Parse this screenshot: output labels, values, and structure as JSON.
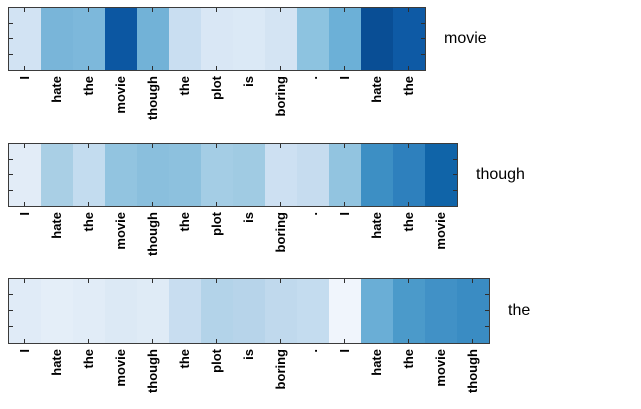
{
  "figure": {
    "background": "#ffffff",
    "axis_color": "#3b3b3b",
    "tick_color": "#2f2f2f",
    "label_color": "#000000"
  },
  "chart_data": {
    "type": "heatmap",
    "title": "",
    "colormap": "Blues",
    "legend": "none",
    "grid": false,
    "description": "Three single-row attention heatmaps over the sentence tokens; each strip shows attention weights used when predicting the target word shown at its right.",
    "value_range": [
      0,
      1
    ],
    "rows": [
      {
        "target_label": "movie",
        "categories": [
          "I",
          "hate",
          "the",
          "movie",
          "though",
          "the",
          "plot",
          "is",
          "boring",
          ".",
          "I",
          "hate",
          "the"
        ],
        "values": [
          0.17,
          0.46,
          0.44,
          0.86,
          0.47,
          0.23,
          0.15,
          0.14,
          0.17,
          0.4,
          0.49,
          0.9,
          0.84
        ],
        "colors": [
          "#d2e3f3",
          "#79b5d9",
          "#7db8db",
          "#0c57a2",
          "#72b2d7",
          "#c9def1",
          "#d9e7f5",
          "#dbe9f6",
          "#d4e4f3",
          "#8dc3e0",
          "#6cb0d7",
          "#094e95",
          "#0e5aa5"
        ]
      },
      {
        "target_label": "though",
        "categories": [
          "I",
          "hate",
          "the",
          "movie",
          "though",
          "the",
          "plot",
          "is",
          "boring",
          ".",
          "I",
          "hate",
          "the",
          "movie"
        ],
        "values": [
          0.11,
          0.33,
          0.26,
          0.39,
          0.42,
          0.41,
          0.34,
          0.35,
          0.22,
          0.25,
          0.39,
          0.63,
          0.68,
          0.8
        ],
        "colors": [
          "#e2ecf7",
          "#a9cfe5",
          "#c3dcef",
          "#92c4e0",
          "#8abfdd",
          "#8dc1de",
          "#a4cde5",
          "#a0cbe3",
          "#cde0f2",
          "#c6dcef",
          "#92c4e0",
          "#3d8fc4",
          "#2e80bd",
          "#1064a8"
        ]
      },
      {
        "target_label": "the",
        "categories": [
          "I",
          "hate",
          "the",
          "movie",
          "though",
          "the",
          "plot",
          "is",
          "boring",
          ".",
          "I",
          "hate",
          "the",
          "movie",
          "though"
        ],
        "values": [
          0.12,
          0.1,
          0.11,
          0.13,
          0.12,
          0.24,
          0.3,
          0.29,
          0.27,
          0.25,
          0.03,
          0.5,
          0.58,
          0.62,
          0.64
        ],
        "colors": [
          "#e0ebf7",
          "#e4eef8",
          "#e1ecf7",
          "#dce9f5",
          "#dfebf6",
          "#c8ddf0",
          "#b3d3e9",
          "#b7d4ea",
          "#c0d9ed",
          "#c4dcef",
          "#f0f5fc",
          "#6aaed6",
          "#4b9aca",
          "#4191c6",
          "#3a8cc3"
        ]
      }
    ]
  }
}
